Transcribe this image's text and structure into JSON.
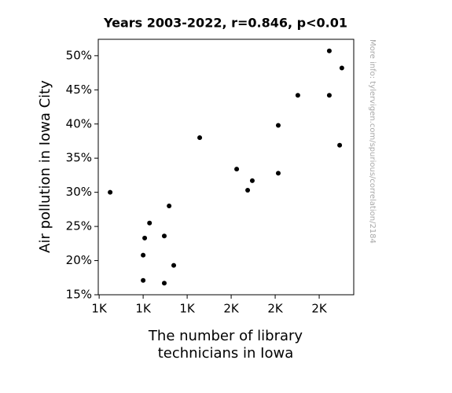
{
  "chart_data": {
    "type": "scatter",
    "title": "Years 2003-2022, r=0.846, p<0.01",
    "xlabel": [
      "The number of library",
      "technicians in Iowa"
    ],
    "ylabel": "Air pollution in Iowa City",
    "note": "More info: tylervigen.com/spurious/correlation/2184",
    "color": "#000000",
    "x": [
      1050,
      1229,
      1318,
      1207,
      1296,
      1200,
      1339,
      1200,
      1296,
      1457,
      1625,
      1696,
      1675,
      1814,
      1814,
      1903,
      2046,
      2046,
      2103,
      2093
    ],
    "values": [
      30.0,
      25.5,
      28.0,
      23.3,
      23.6,
      20.8,
      19.3,
      17.1,
      16.7,
      38.0,
      33.4,
      31.7,
      30.3,
      39.8,
      32.8,
      44.2,
      44.2,
      50.7,
      48.2,
      36.9
    ],
    "xlim": [
      996,
      2157
    ],
    "ylim": [
      15,
      52.4
    ],
    "xticks": [
      {
        "value": 1000,
        "label": "1K"
      },
      {
        "value": 1200,
        "label": "1K"
      },
      {
        "value": 1400,
        "label": "1K"
      },
      {
        "value": 1600,
        "label": "2K"
      },
      {
        "value": 1800,
        "label": "2K"
      },
      {
        "value": 2000,
        "label": "2K"
      }
    ],
    "yticks": [
      {
        "value": 15,
        "label": "15%"
      },
      {
        "value": 20,
        "label": "20%"
      },
      {
        "value": 25,
        "label": "25%"
      },
      {
        "value": 30,
        "label": "30%"
      },
      {
        "value": 35,
        "label": "35%"
      },
      {
        "value": 40,
        "label": "40%"
      },
      {
        "value": 45,
        "label": "45%"
      },
      {
        "value": 50,
        "label": "50%"
      }
    ]
  }
}
